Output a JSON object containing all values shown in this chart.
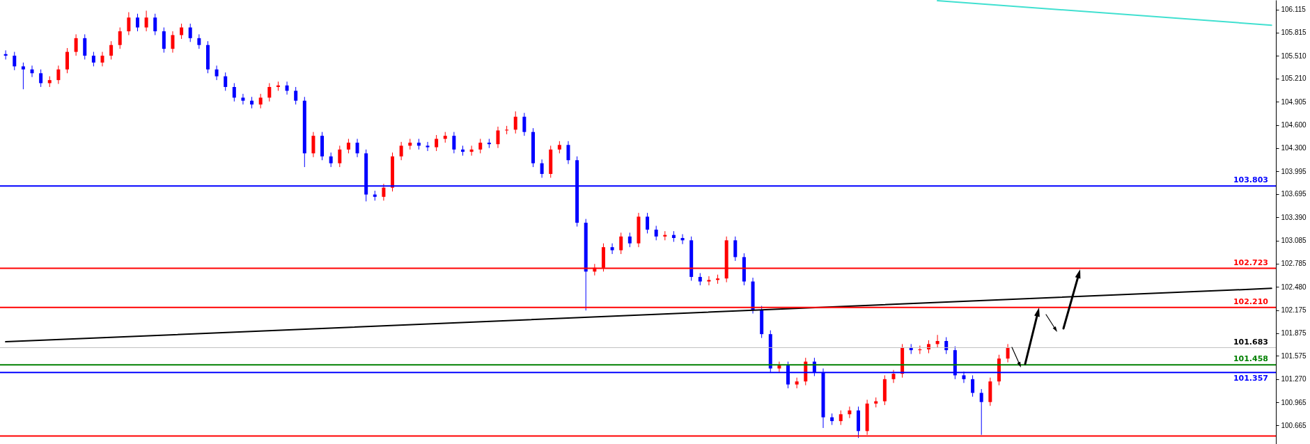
{
  "chart_data": {
    "type": "candlestick",
    "categories": [
      null,
      null,
      null,
      null,
      null,
      null,
      null,
      null,
      null,
      null,
      null,
      null,
      null,
      null,
      null,
      null,
      null,
      null,
      null,
      null,
      null,
      null,
      null,
      null,
      null,
      null,
      null,
      null,
      null,
      null,
      null,
      null,
      null,
      null,
      null,
      null,
      null,
      null,
      null,
      null,
      null,
      null,
      null,
      null,
      null,
      null,
      null,
      null,
      null,
      null,
      null,
      null,
      null,
      null,
      null,
      null,
      null,
      null,
      null,
      null,
      null,
      null,
      null,
      null,
      null,
      null,
      null,
      null,
      null,
      null,
      null,
      null,
      null,
      null,
      null,
      null,
      null,
      null,
      null,
      null,
      null,
      null,
      null,
      null,
      null,
      null,
      null,
      null,
      null,
      null,
      null,
      null,
      null,
      null,
      null,
      null,
      null,
      null,
      null,
      null,
      null,
      null,
      null,
      null,
      null,
      null,
      null,
      null,
      null,
      null,
      null,
      null,
      null,
      null,
      null,
      null,
      null,
      null,
      null,
      null,
      null,
      null,
      null,
      null,
      null,
      null,
      null,
      null,
      null,
      null,
      null,
      null,
      null,
      null,
      null,
      null,
      null,
      null,
      null,
      null,
      null,
      null,
      null,
      null,
      null
    ],
    "ohlc": [
      [
        105.53,
        105.58,
        105.46,
        105.51
      ],
      [
        105.51,
        105.56,
        105.32,
        105.37
      ],
      [
        105.37,
        105.42,
        105.07,
        105.33
      ],
      [
        105.33,
        105.38,
        105.23,
        105.28
      ],
      [
        105.28,
        105.33,
        105.1,
        105.15
      ],
      [
        105.15,
        105.24,
        105.1,
        105.19
      ],
      [
        105.19,
        105.38,
        105.14,
        105.33
      ],
      [
        105.33,
        105.61,
        105.28,
        105.56
      ],
      [
        105.56,
        105.79,
        105.51,
        105.74
      ],
      [
        105.74,
        105.79,
        105.46,
        105.51
      ],
      [
        105.51,
        105.56,
        105.37,
        105.42
      ],
      [
        105.42,
        105.56,
        105.37,
        105.51
      ],
      [
        105.51,
        105.7,
        105.46,
        105.65
      ],
      [
        105.65,
        105.88,
        105.6,
        105.83
      ],
      [
        105.83,
        106.08,
        105.78,
        106.01
      ],
      [
        106.01,
        106.06,
        105.83,
        105.88
      ],
      [
        105.88,
        106.1,
        105.83,
        106.01
      ],
      [
        106.01,
        106.06,
        105.78,
        105.83
      ],
      [
        105.83,
        105.88,
        105.55,
        105.6
      ],
      [
        105.6,
        105.83,
        105.55,
        105.78
      ],
      [
        105.78,
        105.93,
        105.73,
        105.88
      ],
      [
        105.88,
        105.93,
        105.69,
        105.74
      ],
      [
        105.74,
        105.79,
        105.6,
        105.65
      ],
      [
        105.65,
        105.7,
        105.28,
        105.33
      ],
      [
        105.33,
        105.38,
        105.19,
        105.24
      ],
      [
        105.24,
        105.29,
        105.05,
        105.1
      ],
      [
        105.1,
        105.15,
        104.91,
        104.96
      ],
      [
        104.96,
        105.01,
        104.87,
        104.92
      ],
      [
        104.92,
        104.97,
        104.82,
        104.87
      ],
      [
        104.87,
        105.01,
        104.82,
        104.96
      ],
      [
        104.96,
        105.15,
        104.91,
        105.1
      ],
      [
        105.1,
        105.17,
        105.05,
        105.12
      ],
      [
        105.12,
        105.17,
        105.0,
        105.05
      ],
      [
        105.05,
        105.1,
        104.87,
        104.92
      ],
      [
        104.92,
        104.97,
        104.05,
        104.23
      ],
      [
        104.23,
        104.51,
        104.18,
        104.46
      ],
      [
        104.46,
        104.51,
        104.14,
        104.19
      ],
      [
        104.19,
        104.24,
        104.05,
        104.1
      ],
      [
        104.1,
        104.33,
        104.05,
        104.28
      ],
      [
        104.28,
        104.42,
        104.23,
        104.37
      ],
      [
        104.37,
        104.42,
        104.18,
        104.23
      ],
      [
        104.23,
        104.28,
        103.6,
        103.69
      ],
      [
        103.69,
        103.74,
        103.61,
        103.66
      ],
      [
        103.66,
        103.83,
        103.61,
        103.78
      ],
      [
        103.78,
        104.24,
        103.73,
        104.19
      ],
      [
        104.19,
        104.38,
        104.14,
        104.33
      ],
      [
        104.33,
        104.42,
        104.28,
        104.37
      ],
      [
        104.37,
        104.42,
        104.28,
        104.33
      ],
      [
        104.33,
        104.38,
        104.26,
        104.31
      ],
      [
        104.31,
        104.47,
        104.26,
        104.42
      ],
      [
        104.42,
        104.51,
        104.37,
        104.46
      ],
      [
        104.46,
        104.51,
        104.23,
        104.28
      ],
      [
        104.28,
        104.33,
        104.2,
        104.25
      ],
      [
        104.25,
        104.33,
        104.2,
        104.28
      ],
      [
        104.28,
        104.42,
        104.23,
        104.37
      ],
      [
        104.37,
        104.42,
        104.3,
        104.35
      ],
      [
        104.35,
        104.58,
        104.3,
        104.53
      ],
      [
        104.53,
        104.59,
        104.48,
        104.54
      ],
      [
        104.54,
        104.78,
        104.49,
        104.71
      ],
      [
        104.71,
        104.76,
        104.46,
        104.51
      ],
      [
        104.51,
        104.56,
        104.05,
        104.1
      ],
      [
        104.1,
        104.15,
        103.91,
        103.96
      ],
      [
        103.96,
        104.33,
        103.91,
        104.28
      ],
      [
        104.28,
        104.39,
        104.23,
        104.34
      ],
      [
        104.34,
        104.39,
        104.09,
        104.14
      ],
      [
        104.14,
        104.19,
        103.27,
        103.32
      ],
      [
        103.32,
        103.37,
        102.17,
        102.68
      ],
      [
        102.68,
        102.78,
        102.63,
        102.73
      ],
      [
        102.73,
        103.05,
        102.68,
        103.0
      ],
      [
        103.0,
        103.05,
        102.91,
        102.96
      ],
      [
        102.96,
        103.19,
        102.91,
        103.14
      ],
      [
        103.14,
        103.19,
        103.0,
        103.05
      ],
      [
        103.05,
        103.45,
        103.0,
        103.4
      ],
      [
        103.4,
        103.45,
        103.18,
        103.23
      ],
      [
        103.23,
        103.28,
        103.09,
        103.14
      ],
      [
        103.14,
        103.21,
        103.09,
        103.16
      ],
      [
        103.16,
        103.21,
        103.07,
        103.12
      ],
      [
        103.12,
        103.17,
        103.04,
        103.09
      ],
      [
        103.09,
        103.14,
        102.56,
        102.61
      ],
      [
        102.61,
        102.66,
        102.5,
        102.55
      ],
      [
        102.55,
        102.62,
        102.5,
        102.57
      ],
      [
        102.57,
        102.64,
        102.52,
        102.59
      ],
      [
        102.59,
        103.14,
        102.54,
        103.09
      ],
      [
        103.09,
        103.14,
        102.82,
        102.87
      ],
      [
        102.87,
        102.92,
        102.5,
        102.55
      ],
      [
        102.55,
        102.6,
        102.13,
        102.18
      ],
      [
        102.18,
        102.23,
        101.81,
        101.86
      ],
      [
        101.86,
        101.91,
        101.36,
        101.41
      ],
      [
        101.41,
        101.5,
        101.36,
        101.45
      ],
      [
        101.45,
        101.5,
        101.15,
        101.2
      ],
      [
        101.2,
        101.29,
        101.15,
        101.24
      ],
      [
        101.24,
        101.55,
        101.19,
        101.5
      ],
      [
        101.5,
        101.55,
        101.31,
        101.36
      ],
      [
        101.36,
        101.41,
        100.63,
        100.77
      ],
      [
        100.77,
        100.82,
        100.67,
        100.72
      ],
      [
        100.72,
        100.86,
        100.67,
        100.81
      ],
      [
        100.81,
        100.91,
        100.76,
        100.86
      ],
      [
        100.86,
        100.91,
        100.5,
        100.59
      ],
      [
        100.59,
        101.0,
        100.54,
        100.95
      ],
      [
        100.95,
        101.03,
        100.9,
        100.98
      ],
      [
        100.98,
        101.32,
        100.93,
        101.27
      ],
      [
        101.27,
        101.39,
        101.22,
        101.34
      ],
      [
        101.34,
        101.73,
        101.29,
        101.68
      ],
      [
        101.68,
        101.73,
        101.6,
        101.65
      ],
      [
        101.65,
        101.71,
        101.6,
        101.66
      ],
      [
        101.66,
        101.78,
        101.61,
        101.73
      ],
      [
        101.73,
        101.85,
        101.68,
        101.77
      ],
      [
        101.77,
        101.82,
        101.6,
        101.65
      ],
      [
        101.65,
        101.7,
        101.27,
        101.32
      ],
      [
        101.32,
        101.37,
        101.22,
        101.27
      ],
      [
        101.27,
        101.32,
        101.04,
        101.09
      ],
      [
        101.09,
        101.14,
        100.54,
        100.97
      ],
      [
        100.97,
        101.29,
        100.92,
        101.24
      ],
      [
        101.24,
        101.59,
        101.19,
        101.54
      ],
      [
        101.54,
        101.73,
        101.49,
        101.68
      ],
      null,
      null,
      null,
      null,
      null,
      null,
      null,
      null,
      null,
      null,
      null,
      null,
      null,
      null,
      null,
      null,
      null,
      null,
      null,
      null,
      null,
      null,
      null,
      null,
      null,
      null,
      null,
      null,
      null,
      null
    ],
    "colors": [
      "#0000ff",
      "#0000ff",
      "#0000ff",
      "#0000ff",
      "#0000ff",
      "#ff0000",
      "#ff0000",
      "#ff0000",
      "#ff0000",
      "#0000ff",
      "#0000ff",
      "#ff0000",
      "#ff0000",
      "#ff0000",
      "#ff0000",
      "#0000ff",
      "#ff0000",
      "#0000ff",
      "#0000ff",
      "#ff0000",
      "#ff0000",
      "#0000ff",
      "#0000ff",
      "#0000ff",
      "#0000ff",
      "#0000ff",
      "#0000ff",
      "#0000ff",
      "#0000ff",
      "#ff0000",
      "#ff0000",
      "#ff0000",
      "#0000ff",
      "#0000ff",
      "#0000ff",
      "#ff0000",
      "#0000ff",
      "#0000ff",
      "#ff0000",
      "#ff0000",
      "#0000ff",
      "#0000ff",
      "#0000ff",
      "#ff0000",
      "#ff0000",
      "#ff0000",
      "#ff0000",
      "#0000ff",
      "#0000ff",
      "#ff0000",
      "#ff0000",
      "#0000ff",
      "#0000ff",
      "#ff0000",
      "#ff0000",
      "#0000ff",
      "#ff0000",
      "#ff0000",
      "#ff0000",
      "#0000ff",
      "#0000ff",
      "#0000ff",
      "#ff0000",
      "#ff0000",
      "#0000ff",
      "#0000ff",
      "#0000ff",
      "#ff0000",
      "#ff0000",
      "#0000ff",
      "#ff0000",
      "#0000ff",
      "#ff0000",
      "#0000ff",
      "#0000ff",
      "#ff0000",
      "#0000ff",
      "#0000ff",
      "#0000ff",
      "#0000ff",
      "#ff0000",
      "#ff0000",
      "#ff0000",
      "#0000ff",
      "#0000ff",
      "#0000ff",
      "#0000ff",
      "#0000ff",
      "#ff0000",
      "#0000ff",
      "#ff0000",
      "#ff0000",
      "#0000ff",
      "#0000ff",
      "#0000ff",
      "#ff0000",
      "#ff0000",
      "#0000ff",
      "#ff0000",
      "#ff0000",
      "#ff0000",
      "#ff0000",
      "#ff0000",
      "#0000ff",
      "#ff0000",
      "#ff0000",
      "#ff0000",
      "#0000ff",
      "#0000ff",
      "#0000ff",
      "#0000ff",
      "#0000ff",
      "#ff0000",
      "#ff0000",
      "#ff0000",
      null,
      null,
      null,
      null,
      null,
      null,
      null,
      null,
      null,
      null,
      null,
      null,
      null,
      null,
      null,
      null,
      null,
      null,
      null,
      null,
      null,
      null,
      null,
      null,
      null,
      null,
      null,
      null,
      null,
      null
    ],
    "series": [
      {
        "type": "line",
        "color": "#000000",
        "values": [
          101.76,
          null,
          null,
          null,
          null,
          null,
          null,
          null,
          null,
          null,
          null,
          null,
          null,
          null,
          null,
          null,
          null,
          null,
          null,
          null,
          null,
          null,
          null,
          null,
          null,
          null,
          null,
          null,
          null,
          null,
          null,
          null,
          null,
          null,
          null,
          null,
          null,
          null,
          null,
          null,
          null,
          null,
          null,
          null,
          null,
          null,
          null,
          null,
          null,
          null,
          null,
          null,
          null,
          null,
          null,
          null,
          null,
          null,
          null,
          null,
          null,
          null,
          null,
          null,
          null,
          null,
          null,
          null,
          null,
          null,
          null,
          null,
          null,
          null,
          null,
          null,
          null,
          null,
          null,
          null,
          null,
          null,
          null,
          null,
          null,
          null,
          null,
          null,
          null,
          null,
          null,
          null,
          null,
          null,
          null,
          null,
          null,
          null,
          null,
          null,
          null,
          null,
          null,
          null,
          null,
          null,
          null,
          null,
          null,
          null,
          null,
          null,
          null,
          null,
          null,
          null,
          null,
          null,
          null,
          null,
          null,
          null,
          null,
          null,
          null,
          null,
          null,
          null,
          null,
          null,
          null,
          null,
          null,
          null,
          null,
          null,
          null,
          null,
          null,
          null,
          null,
          null,
          null,
          null,
          102.46
        ]
      },
      {
        "type": "line",
        "color": "#40e0d0",
        "values": [
          null,
          null,
          null,
          null,
          null,
          null,
          null,
          null,
          null,
          null,
          null,
          null,
          null,
          null,
          null,
          null,
          null,
          null,
          null,
          null,
          null,
          null,
          null,
          null,
          null,
          null,
          null,
          null,
          null,
          null,
          null,
          null,
          null,
          null,
          null,
          null,
          null,
          null,
          null,
          null,
          null,
          null,
          null,
          null,
          null,
          null,
          null,
          null,
          null,
          null,
          null,
          null,
          null,
          null,
          null,
          null,
          null,
          null,
          null,
          null,
          null,
          null,
          null,
          null,
          null,
          null,
          null,
          null,
          null,
          null,
          null,
          null,
          null,
          null,
          null,
          null,
          null,
          null,
          null,
          null,
          null,
          null,
          null,
          null,
          null,
          null,
          null,
          null,
          null,
          null,
          null,
          null,
          null,
          null,
          null,
          null,
          null,
          null,
          null,
          null,
          null,
          null,
          null,
          null,
          null,
          null,
          106.23,
          null,
          null,
          null,
          null,
          null,
          null,
          null,
          null,
          null,
          null,
          null,
          null,
          null,
          null,
          null,
          null,
          null,
          null,
          null,
          null,
          null,
          null,
          null,
          null,
          null,
          null,
          null,
          null,
          null,
          null,
          null,
          null,
          null,
          null,
          null,
          null,
          null,
          105.91
        ]
      }
    ],
    "ylim": [
      100.42,
      106.24
    ],
    "yticks": [
      {
        "value": 106.115,
        "label": "106.115"
      },
      {
        "value": 105.815,
        "label": "105.815"
      },
      {
        "value": 105.51,
        "label": "105.510"
      },
      {
        "value": 105.21,
        "label": "105.210"
      },
      {
        "value": 104.905,
        "label": "104.905"
      },
      {
        "value": 104.6,
        "label": "104.600"
      },
      {
        "value": 104.3,
        "label": "104.300"
      },
      {
        "value": 103.995,
        "label": "103.995"
      },
      {
        "value": 103.695,
        "label": "103.695"
      },
      {
        "value": 103.39,
        "label": "103.390"
      },
      {
        "value": 103.085,
        "label": "103.085"
      },
      {
        "value": 102.785,
        "label": "102.785"
      },
      {
        "value": 102.48,
        "label": "102.480"
      },
      {
        "value": 102.175,
        "label": "102.175"
      },
      {
        "value": 101.875,
        "label": "101.875"
      },
      {
        "value": 101.575,
        "label": "101.575"
      },
      {
        "value": 101.27,
        "label": "101.270"
      },
      {
        "value": 100.965,
        "label": "100.965"
      },
      {
        "value": 100.665,
        "label": "100.665"
      }
    ],
    "ref_lines": [
      {
        "axis": "y",
        "value": 103.803,
        "label": "103.803",
        "color": "#0000ff"
      },
      {
        "axis": "y",
        "value": 102.723,
        "label": "102.723",
        "color": "#ff0000"
      },
      {
        "axis": "y",
        "value": 102.21,
        "label": "102.210",
        "color": "#ff0000"
      },
      {
        "axis": "y",
        "value": 101.683,
        "label": "101.683",
        "color": "#c0c0c0"
      },
      {
        "axis": "y",
        "value": 101.458,
        "label": "101.458",
        "color": "#008000"
      },
      {
        "axis": "y",
        "value": 101.357,
        "label": "101.357",
        "color": "#0000ff"
      },
      {
        "axis": "y",
        "value": 100.526,
        "color": "#ff0000"
      }
    ],
    "tick_labels": "y"
  }
}
